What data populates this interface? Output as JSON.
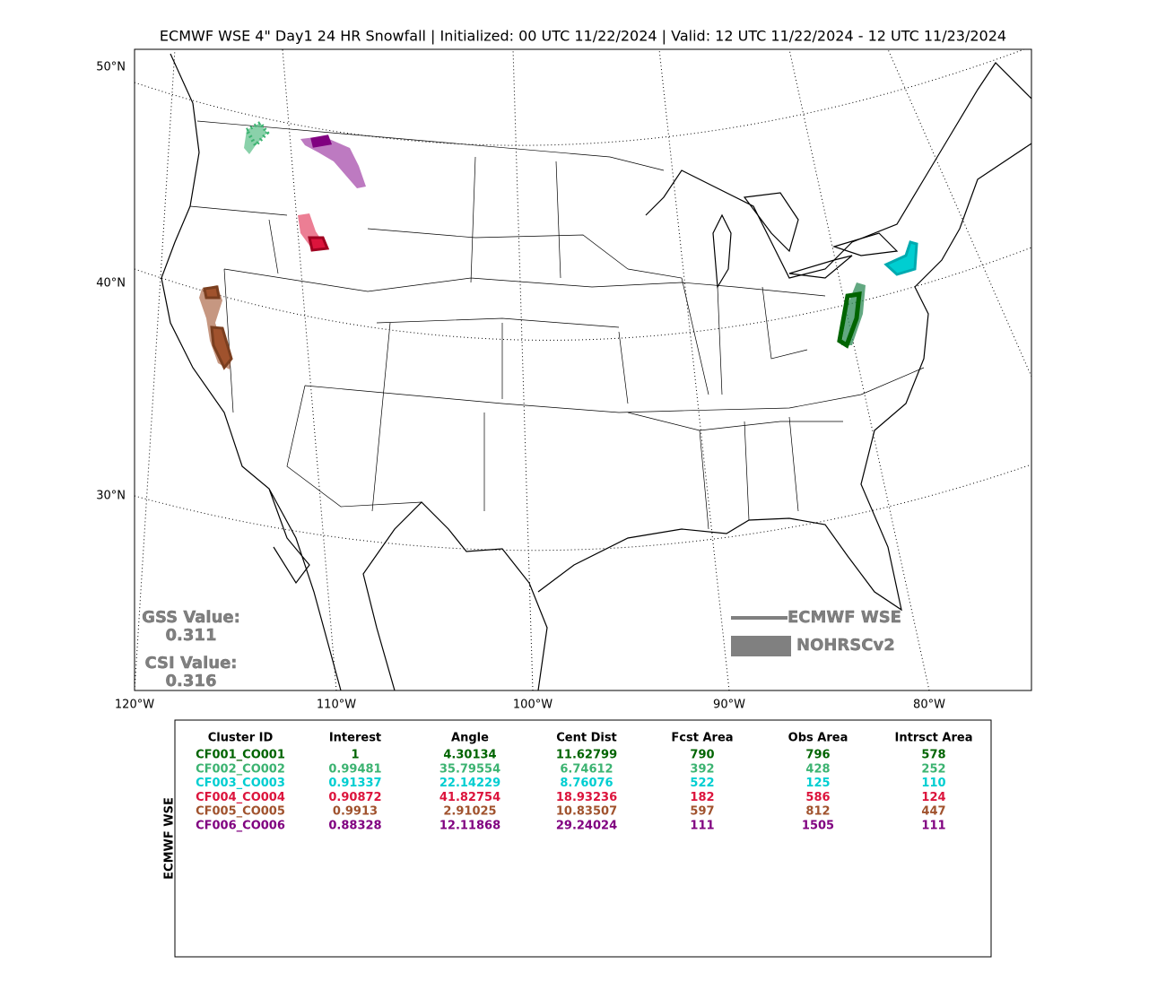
{
  "header": {
    "title": "ECMWF WSE 4\" Day1 24 HR Snowfall | Initialized: 00 UTC 11/22/2024 | Valid: 12 UTC 11/22/2024 - 12 UTC 11/23/2024"
  },
  "map": {
    "lat_labels": [
      "50°N",
      "40°N",
      "30°N"
    ],
    "lon_labels": [
      "120°W",
      "110°W",
      "100°W",
      "90°W",
      "80°W"
    ],
    "legend": [
      "ECMWF WSE",
      "NOHRSCv2"
    ],
    "stats": [
      {
        "label": "GSS Value:",
        "value": "0.311"
      },
      {
        "label": "CSI Value:",
        "value": "0.316"
      }
    ]
  },
  "table": {
    "side_label": "ECMWF WSE",
    "columns": [
      "Cluster ID",
      "Interest",
      "Angle",
      "Cent Dist",
      "Fcst Area",
      "Obs Area",
      "Intrsct Area"
    ],
    "rows": [
      {
        "color": "#006400",
        "cells": [
          "CF001_CO001",
          1,
          4.30134,
          11.62799,
          790,
          796,
          578
        ]
      },
      {
        "color": "#3cb371",
        "cells": [
          "CF002_CO002",
          0.99481,
          35.79554,
          6.74612,
          392,
          428,
          252
        ]
      },
      {
        "color": "#00ced1",
        "cells": [
          "CF003_CO003",
          0.91337,
          22.14229,
          8.76076,
          522,
          125,
          110
        ]
      },
      {
        "color": "#dc143c",
        "cells": [
          "CF004_CO004",
          0.90872,
          41.82754,
          18.93236,
          182,
          586,
          124
        ]
      },
      {
        "color": "#a0522d",
        "cells": [
          "CF005_CO005",
          0.9913,
          2.91025,
          10.83507,
          597,
          812,
          447
        ]
      },
      {
        "color": "#800080",
        "cells": [
          "CF006_CO006",
          0.88328,
          12.11868,
          29.24024,
          111,
          1505,
          111
        ]
      }
    ]
  }
}
